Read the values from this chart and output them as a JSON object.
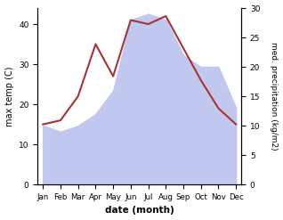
{
  "months": [
    "Jan",
    "Feb",
    "Mar",
    "Apr",
    "May",
    "Jun",
    "Jul",
    "Aug",
    "Sep",
    "Oct",
    "Nov",
    "Dec"
  ],
  "temperature": [
    15,
    16,
    22,
    35,
    27,
    41,
    40,
    42,
    34,
    26,
    19,
    15
  ],
  "precipitation": [
    10,
    9,
    10,
    12,
    16,
    28,
    29,
    28,
    22,
    20,
    20,
    13
  ],
  "temp_color": "#a83232",
  "precip_fill_color": "#c0c8f0",
  "ylabel_left": "max temp (C)",
  "ylabel_right": "med. precipitation (kg/m2)",
  "xlabel": "date (month)",
  "ylim_left": [
    0,
    44
  ],
  "ylim_right": [
    0,
    29.3
  ],
  "yticks_left": [
    0,
    10,
    20,
    30,
    40
  ],
  "yticks_right": [
    0,
    5,
    10,
    15,
    20,
    25,
    30
  ],
  "bg_color": "#ffffff",
  "figsize": [
    3.18,
    2.47
  ],
  "dpi": 100
}
